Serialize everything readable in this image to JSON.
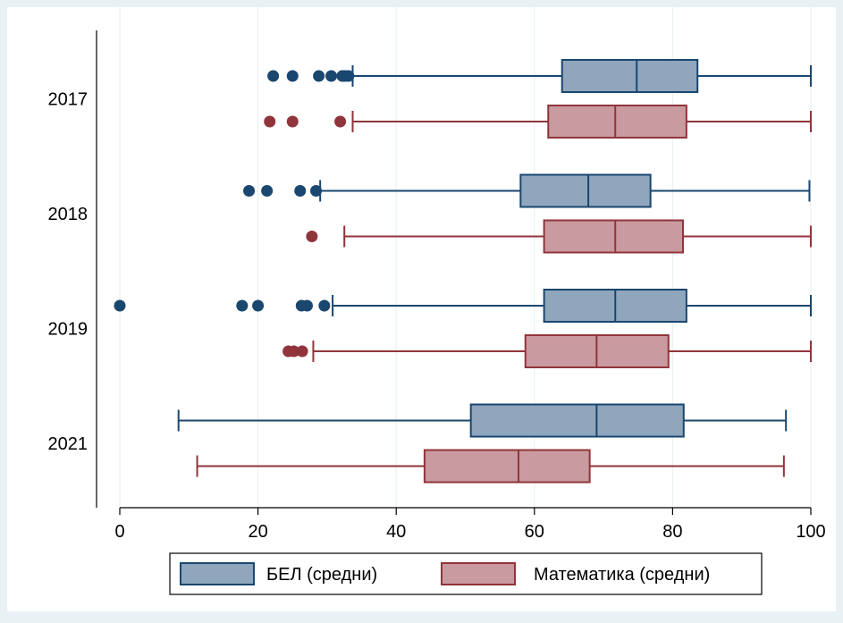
{
  "chart_data": {
    "type": "boxplot",
    "orientation": "horizontal",
    "categories": [
      "2017",
      "2018",
      "2019",
      "2021"
    ],
    "xlim": [
      0,
      100
    ],
    "xticks": [
      0,
      20,
      40,
      60,
      80,
      100
    ],
    "grid": true,
    "legend_position": "bottom",
    "series": [
      {
        "name": "БЕЛ (средни)",
        "color": "#8fa6bd",
        "stroke": "#1a476f",
        "boxes": [
          {
            "category": "2017",
            "whisker_low": 33.7,
            "q1": 64,
            "median": 74.8,
            "q3": 83.6,
            "whisker_high": 100,
            "outliers": [
              22.2,
              25,
              28.8,
              30.6,
              32.2,
              32.6,
              33.1
            ]
          },
          {
            "category": "2018",
            "whisker_low": 29,
            "q1": 58,
            "median": 67.8,
            "q3": 76.8,
            "whisker_high": 99.8,
            "outliers": [
              18.7,
              21.3,
              26.1,
              28.4
            ]
          },
          {
            "category": "2019",
            "whisker_low": 30.8,
            "q1": 61.4,
            "median": 71.7,
            "q3": 82,
            "whisker_high": 100,
            "outliers": [
              0,
              17.7,
              20,
              26.3,
              27.1,
              29.6
            ]
          },
          {
            "category": "2021",
            "whisker_low": 8.5,
            "q1": 50.8,
            "median": 69,
            "q3": 81.6,
            "whisker_high": 96.4,
            "outliers": []
          }
        ]
      },
      {
        "name": "Математика (средни)",
        "color": "#c99aa0",
        "stroke": "#90353b",
        "boxes": [
          {
            "category": "2017",
            "whisker_low": 33.7,
            "q1": 62,
            "median": 71.7,
            "q3": 82,
            "whisker_high": 100,
            "outliers": [
              21.7,
              25,
              31.9
            ]
          },
          {
            "category": "2018",
            "whisker_low": 32.5,
            "q1": 61.4,
            "median": 71.7,
            "q3": 81.5,
            "whisker_high": 100,
            "outliers": [
              27.8
            ]
          },
          {
            "category": "2019",
            "whisker_low": 28,
            "q1": 58.7,
            "median": 69,
            "q3": 79.4,
            "whisker_high": 100,
            "outliers": [
              24.4,
              25.2,
              26.4
            ]
          },
          {
            "category": "2021",
            "whisker_low": 11.2,
            "q1": 44.1,
            "median": 57.7,
            "q3": 68,
            "whisker_high": 96.1,
            "outliers": []
          }
        ]
      }
    ]
  }
}
